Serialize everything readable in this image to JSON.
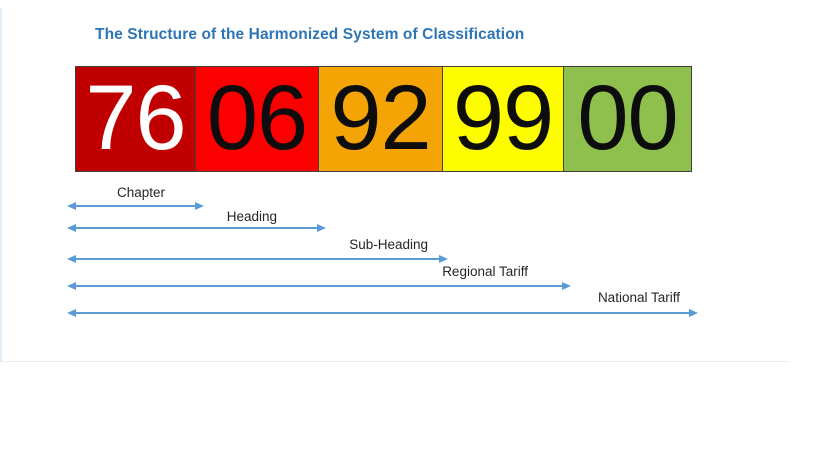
{
  "title": "The Structure of the Harmonized System of Classification",
  "colors": {
    "title_text": "#2E75B6",
    "arrow": "#5B9BD5",
    "label_text": "#262626",
    "box_border": "#404040"
  },
  "code": {
    "segments": [
      {
        "digits": "76",
        "bg": "#C00000",
        "fg": "#FFFFFF"
      },
      {
        "digits": "06",
        "bg": "#FB0000",
        "fg": "#0D0D0D"
      },
      {
        "digits": "92",
        "bg": "#F4A405",
        "fg": "#0D0D0D"
      },
      {
        "digits": "99",
        "bg": "#FDFD00",
        "fg": "#0D0D0D"
      },
      {
        "digits": "00",
        "bg": "#8FC04D",
        "fg": "#0D0D0D"
      }
    ]
  },
  "levels": [
    {
      "label": "Chapter",
      "arrow_spans_digits": "76"
    },
    {
      "label": "Heading",
      "arrow_spans_digits": "76 06"
    },
    {
      "label": "Sub-Heading",
      "arrow_spans_digits": "76 06 92"
    },
    {
      "label": "Regional Tariff",
      "arrow_spans_digits": "76 06 92 99"
    },
    {
      "label": "National Tariff",
      "arrow_spans_digits": "76 06 92 99 00"
    }
  ]
}
